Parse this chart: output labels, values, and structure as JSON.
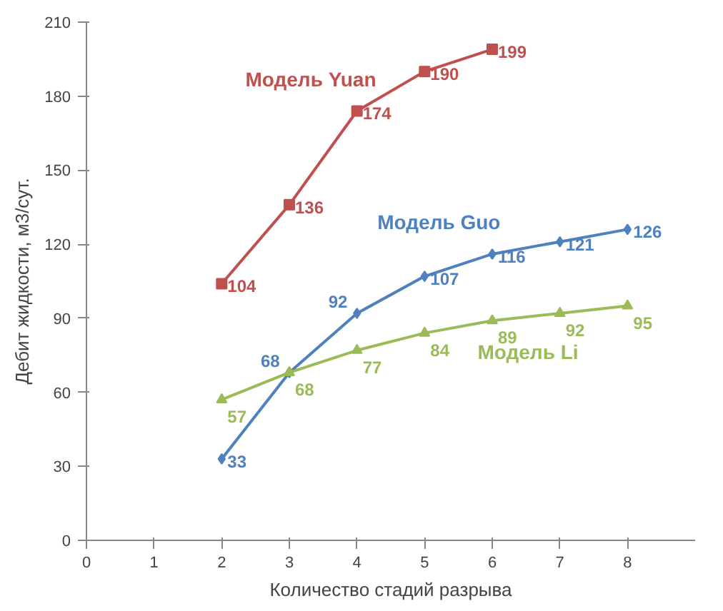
{
  "chart_data": {
    "type": "line",
    "xlabel": "Количество стадий разрыва",
    "ylabel": "Дебит жидкости, м3/сут.",
    "xlim": [
      0,
      9
    ],
    "xticks": [
      0,
      1,
      2,
      3,
      4,
      5,
      6,
      7,
      8
    ],
    "ylim": [
      0,
      210
    ],
    "yticks": [
      0,
      30,
      60,
      90,
      120,
      150,
      180,
      210
    ],
    "grid": false,
    "data_labels": true,
    "series": [
      {
        "name": "Модель Yuan",
        "color": "#c0504d",
        "marker": "square",
        "x": [
          2,
          3,
          4,
          5,
          6
        ],
        "values": [
          104,
          136,
          174,
          190,
          199
        ]
      },
      {
        "name": "Модель Guo",
        "color": "#4f81bd",
        "marker": "diamond",
        "x": [
          2,
          3,
          4,
          5,
          6,
          7,
          8
        ],
        "values": [
          33,
          68,
          92,
          107,
          116,
          121,
          126
        ]
      },
      {
        "name": "Модель Li",
        "color": "#9bbb59",
        "marker": "triangle",
        "x": [
          2,
          3,
          4,
          5,
          6,
          7,
          8
        ],
        "values": [
          57,
          68,
          77,
          84,
          89,
          92,
          95
        ]
      }
    ]
  }
}
